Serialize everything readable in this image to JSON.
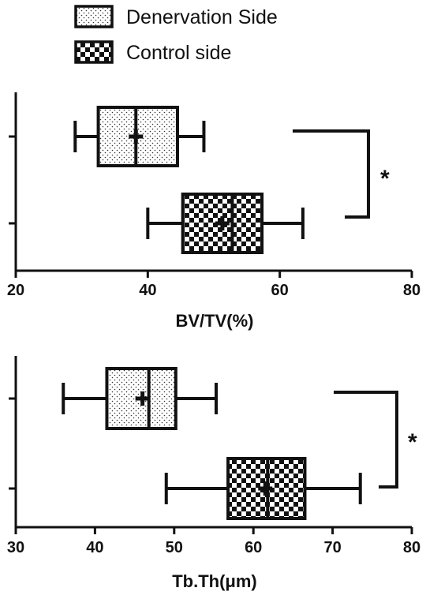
{
  "chart_data": [
    {
      "type": "box",
      "orientation": "horizontal",
      "xlabel": "BV/TV(%)",
      "xlim": [
        20,
        80
      ],
      "xticks": [
        20,
        40,
        60,
        80
      ],
      "significance": "*",
      "series": [
        {
          "name": "Denervation Side",
          "pattern": "dots",
          "whisker_low": 29,
          "q1": 32.5,
          "median": 38.2,
          "q3": 44.5,
          "whisker_high": 48.5,
          "mean": 38.2
        },
        {
          "name": "Control side",
          "pattern": "checker",
          "whisker_low": 40,
          "q1": 45.3,
          "median": 52.8,
          "q3": 57.3,
          "whisker_high": 63.5,
          "mean": 51.3
        }
      ]
    },
    {
      "type": "box",
      "orientation": "horizontal",
      "xlabel": "Tb.Th(μm)",
      "xlim": [
        30,
        80
      ],
      "xticks": [
        30,
        40,
        50,
        60,
        70,
        80
      ],
      "significance": "*",
      "series": [
        {
          "name": "Denervation Side",
          "pattern": "dots",
          "whisker_low": 36,
          "q1": 41.5,
          "median": 46.8,
          "q3": 50.2,
          "whisker_high": 55.3,
          "mean": 46
        },
        {
          "name": "Control side",
          "pattern": "checker",
          "whisker_low": 49,
          "q1": 56.8,
          "median": 61.8,
          "q3": 66.5,
          "whisker_high": 73.5,
          "mean": 61.5
        }
      ]
    }
  ],
  "legend": {
    "items": [
      {
        "label": "Denervation Side",
        "pattern": "dots"
      },
      {
        "label": "Control side",
        "pattern": "checker"
      }
    ]
  }
}
